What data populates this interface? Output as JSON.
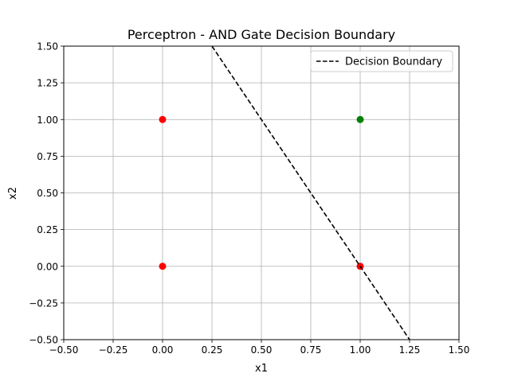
{
  "chart_data": {
    "type": "scatter",
    "title": "Perceptron - AND Gate Decision Boundary",
    "xlabel": "x1",
    "ylabel": "x2",
    "xlim": [
      -0.5,
      1.5
    ],
    "ylim": [
      -0.5,
      1.5
    ],
    "x_ticks": [
      -0.5,
      -0.25,
      0.0,
      0.25,
      0.5,
      0.75,
      1.0,
      1.25,
      1.5
    ],
    "y_ticks": [
      -0.5,
      -0.25,
      0.0,
      0.25,
      0.5,
      0.75,
      1.0,
      1.25,
      1.5
    ],
    "x_tick_labels": [
      "−0.50",
      "−0.25",
      "0.00",
      "0.25",
      "0.50",
      "0.75",
      "1.00",
      "1.25",
      "1.50"
    ],
    "y_tick_labels": [
      "−0.50",
      "−0.25",
      "0.00",
      "0.25",
      "0.50",
      "0.75",
      "1.00",
      "1.25",
      "1.50"
    ],
    "grid": true,
    "legend_position": "upper right",
    "points": [
      {
        "x": 0,
        "y": 0,
        "color": "#ff0000"
      },
      {
        "x": 0,
        "y": 1,
        "color": "#ff0000"
      },
      {
        "x": 1,
        "y": 0,
        "color": "#ff0000"
      },
      {
        "x": 1,
        "y": 1,
        "color": "#008000"
      }
    ],
    "boundary": {
      "name": "Decision Boundary",
      "style": "dashed",
      "color": "#000000",
      "x": [
        0.25,
        1.25
      ],
      "y": [
        1.5,
        -0.5
      ]
    }
  }
}
